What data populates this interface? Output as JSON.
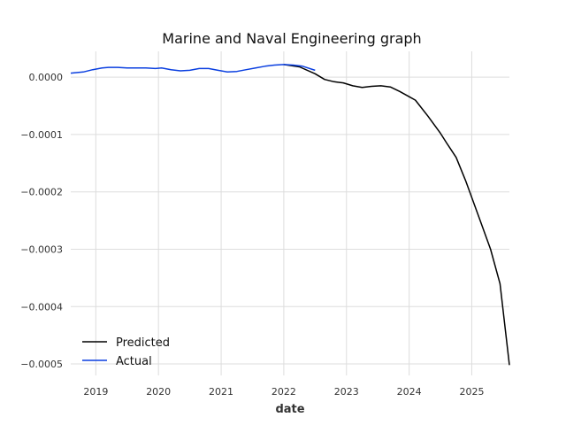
{
  "chart_data": {
    "type": "line",
    "title": "Marine and Naval Engineering graph",
    "xlabel": "date",
    "ylabel": "",
    "xlim": [
      2018.6,
      2025.6
    ],
    "ylim": [
      -0.00052,
      4.5e-05
    ],
    "x_ticks": [
      2019,
      2020,
      2021,
      2022,
      2023,
      2024,
      2025
    ],
    "x_tick_labels": [
      "2019",
      "2020",
      "2021",
      "2022",
      "2023",
      "2024",
      "2025"
    ],
    "y_ticks": [
      0.0,
      -0.0001,
      -0.0002,
      -0.0003,
      -0.0004,
      -0.0005
    ],
    "y_tick_labels": [
      "0.0000",
      "−0.0001",
      "−0.0002",
      "−0.0003",
      "−0.0004",
      "−0.0005"
    ],
    "grid": true,
    "legend": "lower-left",
    "series": [
      {
        "name": "Predicted",
        "color": "#000000",
        "x": [
          2022.0,
          2022.25,
          2022.5,
          2022.65,
          2022.8,
          2022.95,
          2023.1,
          2023.25,
          2023.4,
          2023.55,
          2023.7,
          2023.85,
          2024.0,
          2024.1,
          2024.3,
          2024.5,
          2024.6,
          2024.75,
          2024.9,
          2025.1,
          2025.3,
          2025.45,
          2025.6
        ],
        "y": [
          2.2e-05,
          1.8e-05,
          6e-06,
          -4e-06,
          -8e-06,
          -1e-05,
          -1.5e-05,
          -1.8e-05,
          -1.6e-05,
          -1.5e-05,
          -1.7e-05,
          -2.5e-05,
          -3.4e-05,
          -4e-05,
          -6.8e-05,
          -9.8e-05,
          -0.000115,
          -0.00014,
          -0.00018,
          -0.00024,
          -0.0003,
          -0.00036,
          -0.000502
        ]
      },
      {
        "name": "Actual",
        "color": "#0a3fe0",
        "x": [
          2018.6,
          2018.8,
          2018.95,
          2019.1,
          2019.2,
          2019.35,
          2019.5,
          2019.65,
          2019.8,
          2019.95,
          2020.05,
          2020.2,
          2020.35,
          2020.5,
          2020.65,
          2020.8,
          2020.95,
          2021.1,
          2021.25,
          2021.4,
          2021.55,
          2021.7,
          2021.85,
          2022.0,
          2022.15,
          2022.3,
          2022.5
        ],
        "y": [
          7e-06,
          9e-06,
          1.3e-05,
          1.6e-05,
          1.7e-05,
          1.7e-05,
          1.6e-05,
          1.6e-05,
          1.6e-05,
          1.5e-05,
          1.6e-05,
          1.3e-05,
          1.1e-05,
          1.2e-05,
          1.5e-05,
          1.5e-05,
          1.2e-05,
          9e-06,
          1e-05,
          1.3e-05,
          1.6e-05,
          1.9e-05,
          2.1e-05,
          2.2e-05,
          2.1e-05,
          1.9e-05,
          1.2e-05
        ]
      }
    ]
  }
}
